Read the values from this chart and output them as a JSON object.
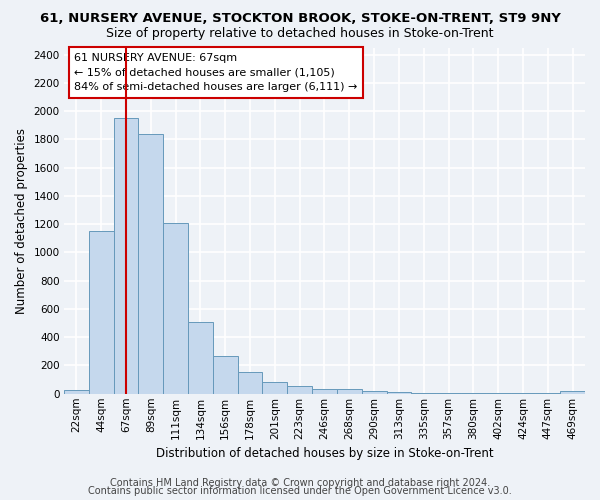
{
  "title": "61, NURSERY AVENUE, STOCKTON BROOK, STOKE-ON-TRENT, ST9 9NY",
  "subtitle": "Size of property relative to detached houses in Stoke-on-Trent",
  "xlabel": "Distribution of detached houses by size in Stoke-on-Trent",
  "ylabel": "Number of detached properties",
  "bar_labels": [
    "22sqm",
    "44sqm",
    "67sqm",
    "89sqm",
    "111sqm",
    "134sqm",
    "156sqm",
    "178sqm",
    "201sqm",
    "223sqm",
    "246sqm",
    "268sqm",
    "290sqm",
    "313sqm",
    "335sqm",
    "357sqm",
    "380sqm",
    "402sqm",
    "424sqm",
    "447sqm",
    "469sqm"
  ],
  "bar_values": [
    25,
    1150,
    1950,
    1840,
    1210,
    510,
    265,
    155,
    80,
    55,
    35,
    35,
    18,
    10,
    8,
    6,
    5,
    5,
    5,
    5,
    18
  ],
  "bar_color": "#c5d8ed",
  "bar_edge_color": "#6699bb",
  "vline_x": 2,
  "vline_color": "#cc0000",
  "annotation_text": "61 NURSERY AVENUE: 67sqm\n← 15% of detached houses are smaller (1,105)\n84% of semi-detached houses are larger (6,111) →",
  "annotation_box_color": "#ffffff",
  "annotation_box_edge_color": "#cc0000",
  "ylim": [
    0,
    2450
  ],
  "yticks": [
    0,
    200,
    400,
    600,
    800,
    1000,
    1200,
    1400,
    1600,
    1800,
    2000,
    2200,
    2400
  ],
  "footer1": "Contains HM Land Registry data © Crown copyright and database right 2024.",
  "footer2": "Contains public sector information licensed under the Open Government Licence v3.0.",
  "bg_color": "#eef2f7",
  "plot_bg_color": "#eef2f7",
  "grid_color": "#ffffff",
  "title_fontsize": 9.5,
  "subtitle_fontsize": 9,
  "axis_label_fontsize": 8.5,
  "tick_fontsize": 7.5,
  "annotation_fontsize": 8,
  "footer_fontsize": 7
}
